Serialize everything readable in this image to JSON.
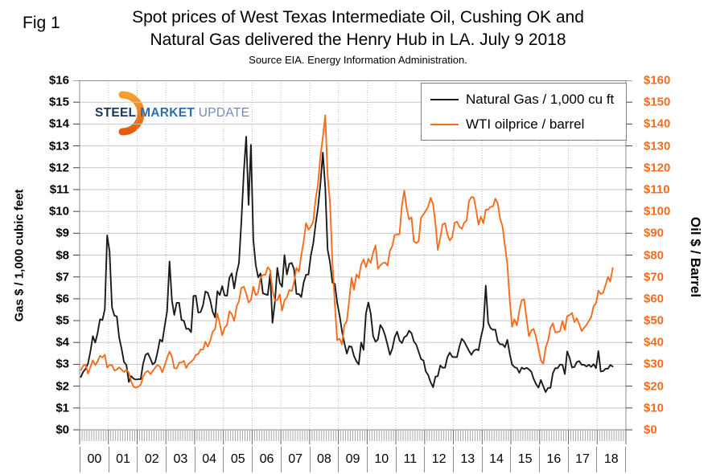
{
  "header": {
    "fig_label": "Fig 1",
    "title_line1": "Spot prices of West Texas Intermediate Oil, Cushing OK and",
    "title_line2": "Natural Gas delivered the Henry Hub in LA. July 9 2018",
    "subtitle": "Source EIA. Energy Information Administration."
  },
  "logo": {
    "word1": "STEEL",
    "word2": "MARKET",
    "word3": "UPDATE"
  },
  "legend": {
    "items": [
      {
        "label": "Natural Gas / 1,000 cu ft",
        "color": "#1a1a1a"
      },
      {
        "label": "WTI oilprice / barrel",
        "color": "#f76b1c"
      }
    ]
  },
  "axes": {
    "gas_title": "Gas $ / 1,000 cubic feet",
    "oil_title": "Oil $ / Barrel"
  },
  "colors": {
    "gas_line": "#1a1a1a",
    "oil_line": "#f76b1c",
    "oil_axis_text": "#f76b1c",
    "grid": "#c9c9c9",
    "grid_dotted": "#bdbdbd",
    "frame": "#8c8c8c"
  },
  "chart_data": {
    "type": "line",
    "title": "Spot prices of West Texas Intermediate Oil, Cushing OK and Natural Gas delivered the Henry Hub in LA. July 9 2018",
    "x_unit": "month",
    "x_start": "2000-01",
    "x_end": "2018-07",
    "x_axis_span_years": 19,
    "x_tick_labels": [
      "00",
      "01",
      "02",
      "03",
      "04",
      "05",
      "06",
      "07",
      "08",
      "09",
      "10",
      "11",
      "12",
      "13",
      "14",
      "15",
      "16",
      "17",
      "18"
    ],
    "left_axis": {
      "label": "Gas $ / 1,000 cubic feet",
      "ylim": [
        0,
        16
      ],
      "tick_step": 1
    },
    "right_axis": {
      "label": "Oil $ / Barrel",
      "ylim": [
        0,
        160
      ],
      "tick_step": 10
    },
    "left_tick_labels": [
      "$16",
      "$15",
      "$14",
      "$13",
      "$12",
      "$11",
      "$10",
      "$9",
      "$8",
      "$7",
      "$6",
      "$5",
      "$4",
      "$3",
      "$2",
      "$1",
      "$0"
    ],
    "right_tick_labels": [
      "$160",
      "$150",
      "$140",
      "$130",
      "$120",
      "$110",
      "$100",
      "$90",
      "$80",
      "$70",
      "$60",
      "$50",
      "$40",
      "$30",
      "$20",
      "$10",
      "$0"
    ],
    "grid": true,
    "legend_position": "top-right",
    "series": [
      {
        "name": "Natural Gas / 1,000 cu ft",
        "axis": "left",
        "color": "#1a1a1a",
        "values": [
          2.42,
          2.66,
          2.79,
          3.04,
          3.59,
          4.29,
          3.99,
          4.43,
          5.06,
          5.02,
          5.52,
          8.9,
          8.17,
          5.61,
          5.23,
          5.19,
          4.23,
          3.72,
          3.11,
          2.97,
          2.19,
          2.46,
          2.34,
          2.3,
          2.32,
          2.32,
          3.03,
          3.43,
          3.5,
          3.26,
          2.99,
          3.09,
          3.55,
          4.13,
          4.04,
          4.75,
          5.43,
          7.71,
          5.93,
          5.26,
          5.81,
          5.82,
          5.03,
          4.99,
          4.62,
          4.63,
          4.47,
          6.13,
          6.14,
          5.37,
          5.39,
          5.71,
          6.33,
          6.27,
          5.93,
          5.41,
          5.15,
          6.35,
          6.17,
          6.58,
          6.15,
          6.14,
          6.96,
          7.16,
          6.47,
          7.18,
          7.63,
          9.53,
          11.75,
          13.42,
          10.3,
          13.05,
          8.69,
          7.54,
          6.98,
          7.16,
          6.25,
          6.21,
          6.17,
          7.14,
          4.9,
          5.85,
          7.41,
          6.73,
          6.55,
          8.0,
          7.11,
          7.6,
          7.64,
          7.35,
          6.22,
          6.22,
          6.08,
          6.74,
          7.1,
          7.11,
          7.99,
          8.54,
          9.41,
          10.18,
          11.27,
          12.69,
          11.09,
          8.26,
          7.67,
          6.74,
          6.68,
          5.82,
          5.24,
          4.51,
          3.96,
          3.49,
          3.83,
          3.8,
          3.38,
          3.14,
          2.99,
          4.0,
          3.66,
          5.34,
          5.83,
          5.32,
          4.29,
          4.03,
          4.14,
          4.8,
          4.63,
          4.32,
          3.89,
          3.43,
          3.71,
          4.25,
          4.49,
          4.09,
          3.97,
          4.24,
          4.31,
          4.54,
          4.42,
          4.05,
          3.9,
          3.57,
          3.24,
          3.17,
          2.67,
          2.5,
          2.17,
          1.95,
          2.43,
          2.46,
          2.95,
          2.84,
          2.85,
          3.32,
          3.54,
          3.34,
          3.33,
          3.33,
          3.81,
          4.17,
          4.04,
          3.83,
          3.62,
          3.43,
          3.62,
          3.68,
          3.64,
          4.24,
          4.71,
          6.6,
          4.9,
          4.66,
          4.58,
          4.59,
          4.05,
          3.91,
          3.92,
          3.78,
          4.12,
          3.48,
          2.99,
          2.87,
          2.83,
          2.61,
          2.85,
          2.78,
          2.84,
          2.77,
          2.66,
          2.34,
          2.09,
          1.93,
          2.28,
          1.99,
          1.73,
          1.92,
          1.92,
          2.59,
          2.82,
          2.82,
          2.99,
          2.98,
          2.55,
          3.59,
          3.3,
          2.85,
          2.88,
          3.1,
          3.15,
          2.98,
          2.98,
          2.9,
          2.98,
          2.88,
          3.01,
          2.82,
          3.6,
          2.67,
          2.69,
          2.8,
          2.8,
          2.97,
          2.9
        ]
      },
      {
        "name": "WTI oilprice / barrel",
        "axis": "right",
        "color": "#f76b1c",
        "values": [
          27.3,
          29.4,
          29.9,
          25.7,
          28.8,
          31.8,
          29.7,
          31.3,
          33.9,
          33.1,
          34.4,
          28.5,
          29.6,
          29.6,
          27.2,
          27.5,
          28.6,
          27.6,
          26.5,
          27.5,
          26.2,
          22.2,
          19.7,
          19.3,
          19.7,
          20.7,
          24.4,
          26.3,
          27.0,
          25.5,
          26.9,
          28.4,
          29.7,
          28.9,
          26.3,
          29.4,
          33.0,
          35.8,
          33.5,
          28.2,
          28.1,
          30.7,
          30.8,
          31.6,
          28.3,
          30.3,
          31.1,
          32.2,
          34.3,
          34.7,
          36.8,
          36.7,
          40.3,
          38.0,
          40.8,
          44.9,
          46.0,
          53.3,
          48.5,
          43.3,
          46.8,
          48.0,
          54.3,
          53.0,
          49.8,
          56.4,
          59.0,
          65.0,
          65.5,
          62.4,
          58.3,
          59.4,
          65.5,
          61.6,
          62.9,
          69.7,
          70.9,
          71.0,
          74.4,
          73.1,
          63.9,
          59.1,
          59.4,
          62.0,
          54.5,
          59.3,
          60.6,
          64.0,
          63.5,
          67.5,
          74.2,
          72.4,
          79.9,
          86.2,
          94.6,
          91.7,
          93.0,
          95.4,
          105.6,
          112.6,
          125.4,
          133.9,
          144.0,
          116.6,
          103.9,
          76.7,
          57.4,
          41.0,
          41.7,
          39.1,
          48.0,
          49.8,
          59.2,
          69.6,
          64.1,
          71.1,
          69.5,
          75.7,
          78.0,
          74.5,
          78.3,
          76.4,
          81.2,
          84.4,
          73.7,
          75.3,
          76.3,
          76.6,
          75.2,
          81.9,
          84.2,
          89.2,
          89.4,
          89.6,
          102.9,
          109.5,
          101.3,
          96.3,
          97.3,
          86.3,
          85.5,
          86.4,
          97.2,
          98.6,
          100.3,
          102.3,
          106.2,
          103.3,
          94.7,
          82.3,
          87.9,
          94.1,
          94.6,
          89.5,
          86.7,
          88.2,
          94.8,
          95.3,
          93.0,
          92.0,
          94.8,
          95.8,
          104.7,
          106.6,
          106.3,
          100.5,
          93.9,
          97.6,
          94.6,
          100.8,
          100.8,
          102.1,
          102.2,
          105.8,
          103.6,
          96.5,
          93.2,
          84.4,
          75.8,
          59.3,
          47.2,
          50.6,
          47.8,
          54.5,
          59.3,
          59.8,
          51.2,
          42.9,
          45.5,
          46.2,
          42.4,
          37.2,
          31.7,
          30.3,
          37.6,
          40.8,
          46.7,
          48.8,
          44.7,
          44.7,
          45.2,
          49.8,
          45.7,
          52.0,
          52.5,
          53.5,
          49.3,
          51.1,
          48.5,
          45.2,
          46.6,
          48.0,
          49.8,
          51.6,
          56.6,
          57.9,
          63.7,
          62.2,
          62.7,
          66.3,
          70.0,
          67.9,
          74.1
        ]
      }
    ]
  }
}
